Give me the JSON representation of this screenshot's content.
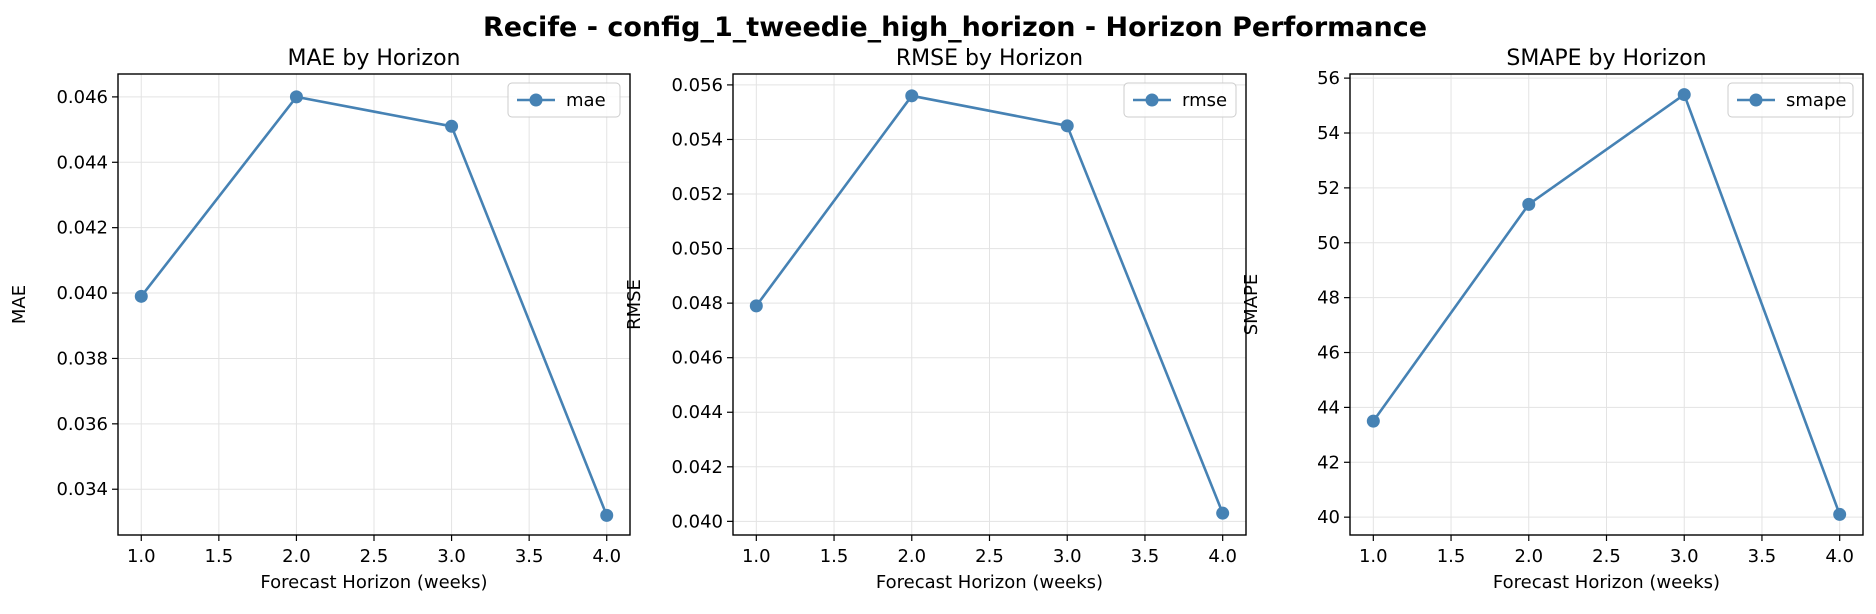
{
  "title": "Recife - config_1_tweedie_high_horizon - Horizon Performance",
  "colors": {
    "series": "#4682b4",
    "grid": "#e3e3e3",
    "axis": "#000000"
  },
  "chart_data": [
    {
      "type": "line",
      "title": "MAE by Horizon",
      "xlabel": "Forecast Horizon (weeks)",
      "ylabel": "MAE",
      "x": [
        1.0,
        2.0,
        3.0,
        4.0
      ],
      "series": [
        {
          "name": "mae",
          "values": [
            0.0399,
            0.046,
            0.0451,
            0.0332
          ]
        }
      ],
      "xlim": [
        0.85,
        4.15
      ],
      "ylim": [
        0.0326,
        0.0467
      ],
      "xticks": [
        1.0,
        1.5,
        2.0,
        2.5,
        3.0,
        3.5,
        4.0
      ],
      "xtick_labels": [
        "1.0",
        "1.5",
        "2.0",
        "2.5",
        "3.0",
        "3.5",
        "4.0"
      ],
      "yticks": [
        0.034,
        0.036,
        0.038,
        0.04,
        0.042,
        0.044,
        0.046
      ],
      "ytick_labels": [
        "0.034",
        "0.036",
        "0.038",
        "0.040",
        "0.042",
        "0.044",
        "0.046"
      ],
      "grid": true,
      "legend": "upper right"
    },
    {
      "type": "line",
      "title": "RMSE by Horizon",
      "xlabel": "Forecast Horizon (weeks)",
      "ylabel": "RMSE",
      "x": [
        1.0,
        2.0,
        3.0,
        4.0
      ],
      "series": [
        {
          "name": "rmse",
          "values": [
            0.0479,
            0.0556,
            0.0545,
            0.0403
          ]
        }
      ],
      "xlim": [
        0.85,
        4.15
      ],
      "ylim": [
        0.0395,
        0.0564
      ],
      "xticks": [
        1.0,
        1.5,
        2.0,
        2.5,
        3.0,
        3.5,
        4.0
      ],
      "xtick_labels": [
        "1.0",
        "1.5",
        "2.0",
        "2.5",
        "3.0",
        "3.5",
        "4.0"
      ],
      "yticks": [
        0.04,
        0.042,
        0.044,
        0.046,
        0.048,
        0.05,
        0.052,
        0.054,
        0.056
      ],
      "ytick_labels": [
        "0.040",
        "0.042",
        "0.044",
        "0.046",
        "0.048",
        "0.050",
        "0.052",
        "0.054",
        "0.056"
      ],
      "grid": true,
      "legend": "upper right"
    },
    {
      "type": "line",
      "title": "SMAPE by Horizon",
      "xlabel": "Forecast Horizon (weeks)",
      "ylabel": "SMAPE",
      "x": [
        1.0,
        2.0,
        3.0,
        4.0
      ],
      "series": [
        {
          "name": "smape",
          "values": [
            43.5,
            51.4,
            55.4,
            40.1
          ]
        }
      ],
      "xlim": [
        0.85,
        4.15
      ],
      "ylim": [
        39.35,
        56.15
      ],
      "xticks": [
        1.0,
        1.5,
        2.0,
        2.5,
        3.0,
        3.5,
        4.0
      ],
      "xtick_labels": [
        "1.0",
        "1.5",
        "2.0",
        "2.5",
        "3.0",
        "3.5",
        "4.0"
      ],
      "yticks": [
        40,
        42,
        44,
        46,
        48,
        50,
        52,
        54,
        56
      ],
      "ytick_labels": [
        "40",
        "42",
        "44",
        "46",
        "48",
        "50",
        "52",
        "54",
        "56"
      ],
      "grid": true,
      "legend": "upper right"
    }
  ]
}
